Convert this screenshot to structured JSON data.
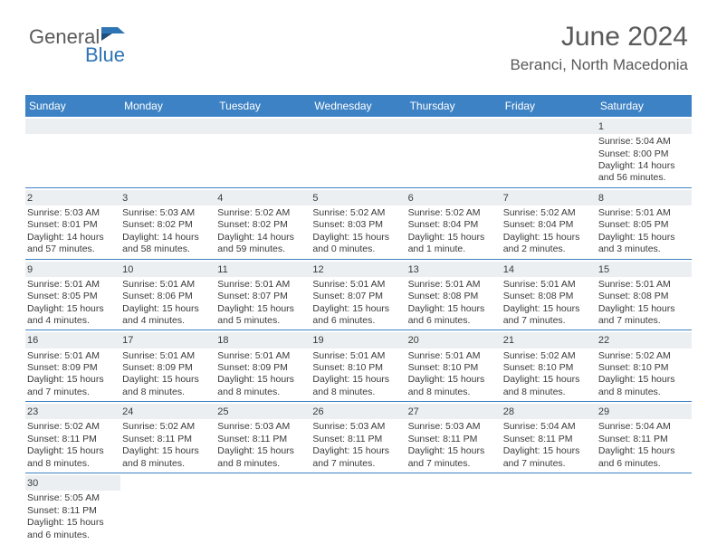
{
  "logo": {
    "part1": "General",
    "part2": "Blue"
  },
  "title": "June 2024",
  "location": "Beranci, North Macedonia",
  "colors": {
    "header_bg": "#3d82c4",
    "header_text": "#ffffff",
    "daynum_bg": "#eceff1",
    "row_border": "#3d82c4",
    "text": "#3a3a3a",
    "logo_gray": "#5a5a5a",
    "logo_blue": "#2f74b5"
  },
  "weekdays": [
    "Sunday",
    "Monday",
    "Tuesday",
    "Wednesday",
    "Thursday",
    "Friday",
    "Saturday"
  ],
  "weeks": [
    [
      null,
      null,
      null,
      null,
      null,
      null,
      {
        "d": "1",
        "sr": "5:04 AM",
        "ss": "8:00 PM",
        "dl": "14 hours and 56 minutes."
      }
    ],
    [
      {
        "d": "2",
        "sr": "5:03 AM",
        "ss": "8:01 PM",
        "dl": "14 hours and 57 minutes."
      },
      {
        "d": "3",
        "sr": "5:03 AM",
        "ss": "8:02 PM",
        "dl": "14 hours and 58 minutes."
      },
      {
        "d": "4",
        "sr": "5:02 AM",
        "ss": "8:02 PM",
        "dl": "14 hours and 59 minutes."
      },
      {
        "d": "5",
        "sr": "5:02 AM",
        "ss": "8:03 PM",
        "dl": "15 hours and 0 minutes."
      },
      {
        "d": "6",
        "sr": "5:02 AM",
        "ss": "8:04 PM",
        "dl": "15 hours and 1 minute."
      },
      {
        "d": "7",
        "sr": "5:02 AM",
        "ss": "8:04 PM",
        "dl": "15 hours and 2 minutes."
      },
      {
        "d": "8",
        "sr": "5:01 AM",
        "ss": "8:05 PM",
        "dl": "15 hours and 3 minutes."
      }
    ],
    [
      {
        "d": "9",
        "sr": "5:01 AM",
        "ss": "8:05 PM",
        "dl": "15 hours and 4 minutes."
      },
      {
        "d": "10",
        "sr": "5:01 AM",
        "ss": "8:06 PM",
        "dl": "15 hours and 4 minutes."
      },
      {
        "d": "11",
        "sr": "5:01 AM",
        "ss": "8:07 PM",
        "dl": "15 hours and 5 minutes."
      },
      {
        "d": "12",
        "sr": "5:01 AM",
        "ss": "8:07 PM",
        "dl": "15 hours and 6 minutes."
      },
      {
        "d": "13",
        "sr": "5:01 AM",
        "ss": "8:08 PM",
        "dl": "15 hours and 6 minutes."
      },
      {
        "d": "14",
        "sr": "5:01 AM",
        "ss": "8:08 PM",
        "dl": "15 hours and 7 minutes."
      },
      {
        "d": "15",
        "sr": "5:01 AM",
        "ss": "8:08 PM",
        "dl": "15 hours and 7 minutes."
      }
    ],
    [
      {
        "d": "16",
        "sr": "5:01 AM",
        "ss": "8:09 PM",
        "dl": "15 hours and 7 minutes."
      },
      {
        "d": "17",
        "sr": "5:01 AM",
        "ss": "8:09 PM",
        "dl": "15 hours and 8 minutes."
      },
      {
        "d": "18",
        "sr": "5:01 AM",
        "ss": "8:09 PM",
        "dl": "15 hours and 8 minutes."
      },
      {
        "d": "19",
        "sr": "5:01 AM",
        "ss": "8:10 PM",
        "dl": "15 hours and 8 minutes."
      },
      {
        "d": "20",
        "sr": "5:01 AM",
        "ss": "8:10 PM",
        "dl": "15 hours and 8 minutes."
      },
      {
        "d": "21",
        "sr": "5:02 AM",
        "ss": "8:10 PM",
        "dl": "15 hours and 8 minutes."
      },
      {
        "d": "22",
        "sr": "5:02 AM",
        "ss": "8:10 PM",
        "dl": "15 hours and 8 minutes."
      }
    ],
    [
      {
        "d": "23",
        "sr": "5:02 AM",
        "ss": "8:11 PM",
        "dl": "15 hours and 8 minutes."
      },
      {
        "d": "24",
        "sr": "5:02 AM",
        "ss": "8:11 PM",
        "dl": "15 hours and 8 minutes."
      },
      {
        "d": "25",
        "sr": "5:03 AM",
        "ss": "8:11 PM",
        "dl": "15 hours and 8 minutes."
      },
      {
        "d": "26",
        "sr": "5:03 AM",
        "ss": "8:11 PM",
        "dl": "15 hours and 7 minutes."
      },
      {
        "d": "27",
        "sr": "5:03 AM",
        "ss": "8:11 PM",
        "dl": "15 hours and 7 minutes."
      },
      {
        "d": "28",
        "sr": "5:04 AM",
        "ss": "8:11 PM",
        "dl": "15 hours and 7 minutes."
      },
      {
        "d": "29",
        "sr": "5:04 AM",
        "ss": "8:11 PM",
        "dl": "15 hours and 6 minutes."
      }
    ],
    [
      {
        "d": "30",
        "sr": "5:05 AM",
        "ss": "8:11 PM",
        "dl": "15 hours and 6 minutes."
      },
      null,
      null,
      null,
      null,
      null,
      null
    ]
  ],
  "labels": {
    "sunrise": "Sunrise:",
    "sunset": "Sunset:",
    "daylight": "Daylight:"
  }
}
